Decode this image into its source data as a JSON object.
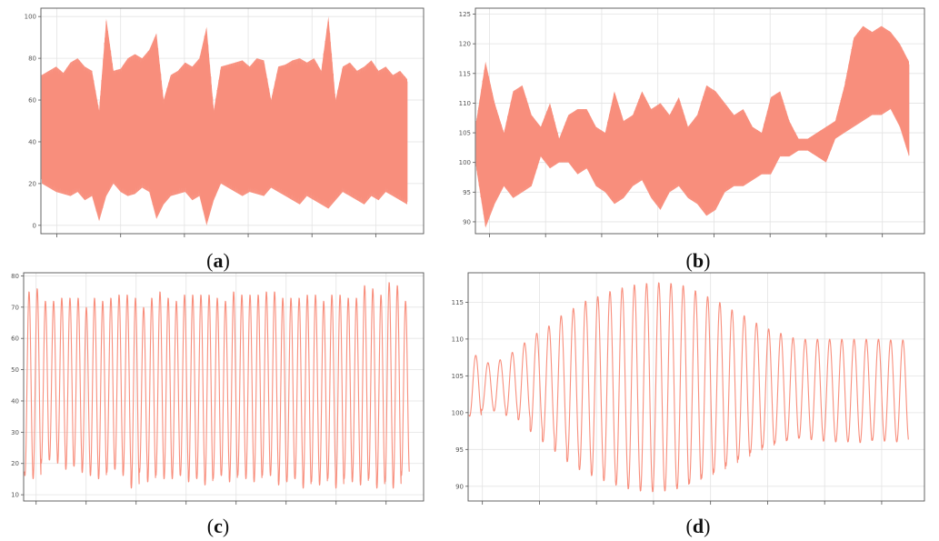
{
  "colors": {
    "series": "#f88e7c",
    "grid": "#e3e3e3",
    "frame": "#555555"
  },
  "panels": [
    {
      "caption": "a",
      "chart_data": {
        "type": "area",
        "render": "dense-band",
        "ylim": [
          -4,
          104
        ],
        "yticks": [
          0,
          20,
          40,
          60,
          80,
          100
        ],
        "xticks_count": 6,
        "grid": true,
        "series": [
          {
            "band_upper": [
              72,
              74,
              76,
              73,
              78,
              80,
              76,
              74,
              55,
              99,
              74,
              75,
              80,
              82,
              80,
              84,
              92,
              60,
              72,
              74,
              78,
              76,
              80,
              95,
              55,
              76,
              77,
              78,
              79,
              76,
              80,
              79,
              60,
              76,
              77,
              79,
              80,
              78,
              80,
              74,
              100,
              60,
              76,
              78,
              74,
              76,
              79,
              74,
              76,
              72,
              74,
              70
            ],
            "band_lower": [
              20,
              18,
              16,
              15,
              14,
              16,
              12,
              14,
              2,
              14,
              20,
              16,
              14,
              15,
              18,
              16,
              3,
              10,
              14,
              15,
              16,
              12,
              14,
              0,
              12,
              20,
              18,
              16,
              14,
              16,
              15,
              14,
              18,
              16,
              14,
              12,
              10,
              14,
              12,
              10,
              8,
              12,
              16,
              14,
              12,
              10,
              14,
              12,
              16,
              14,
              12,
              10
            ]
          }
        ]
      }
    },
    {
      "caption": "b",
      "chart_data": {
        "type": "area",
        "render": "dense-band",
        "ylim": [
          88,
          126
        ],
        "yticks": [
          90,
          95,
          100,
          105,
          110,
          115,
          120,
          125
        ],
        "xticks_count": 8,
        "grid": true,
        "series": [
          {
            "band_upper": [
              107,
              117,
              110,
              105,
              112,
              113,
              108,
              106,
              110,
              104,
              108,
              109,
              109,
              106,
              105,
              112,
              107,
              108,
              112,
              109,
              110,
              108,
              111,
              106,
              108,
              113,
              112,
              110,
              108,
              109,
              106,
              105,
              111,
              112,
              107,
              104,
              104,
              105,
              106,
              107,
              113,
              121,
              123,
              122,
              123,
              122,
              120,
              117
            ],
            "band_lower": [
              99,
              89,
              93,
              96,
              94,
              95,
              96,
              101,
              99,
              100,
              100,
              98,
              99,
              96,
              95,
              93,
              94,
              96,
              97,
              94,
              92,
              95,
              96,
              94,
              93,
              91,
              92,
              95,
              96,
              96,
              97,
              98,
              98,
              101,
              101,
              102,
              102,
              101,
              100,
              104,
              105,
              106,
              107,
              108,
              108,
              109,
              106,
              101
            ]
          }
        ]
      }
    },
    {
      "caption": "c",
      "chart_data": {
        "type": "line",
        "render": "oscillation",
        "ylim": [
          8,
          81
        ],
        "yticks": [
          10,
          20,
          30,
          40,
          50,
          60,
          70,
          80
        ],
        "xticks_count": 8,
        "grid": true,
        "series": [
          {
            "peaks": [
              75,
              76,
              72,
              72,
              73,
              73,
              73,
              70,
              73,
              72,
              73,
              74,
              74,
              73,
              70,
              73,
              75,
              73,
              72,
              74,
              74,
              74,
              74,
              73,
              72,
              75,
              74,
              74,
              74,
              75,
              75,
              73,
              73,
              73,
              74,
              74,
              72,
              74,
              74,
              73,
              73,
              77,
              76,
              74,
              78,
              77,
              72
            ],
            "troughs": [
              16,
              15,
              20,
              21,
              20,
              18,
              19,
              17,
              16,
              15,
              17,
              18,
              16,
              12,
              17,
              14,
              16,
              15,
              15,
              16,
              14,
              15,
              13,
              15,
              16,
              14,
              16,
              15,
              14,
              16,
              16,
              13,
              14,
              15,
              12,
              14,
              13,
              15,
              12,
              15,
              14,
              13,
              15,
              12,
              14,
              12,
              16
            ]
          }
        ]
      }
    },
    {
      "caption": "d",
      "chart_data": {
        "type": "line",
        "render": "oscillation",
        "ylim": [
          88,
          119
        ],
        "yticks": [
          90,
          95,
          100,
          105,
          110,
          115
        ],
        "xticks_count": 8,
        "grid": true,
        "series": [
          {
            "peaks": [
              107.8,
              106.8,
              107.2,
              108.2,
              109.5,
              110.8,
              111.8,
              113.2,
              114.2,
              115.2,
              115.8,
              116.5,
              117,
              117.4,
              117.6,
              117.7,
              117.6,
              117.3,
              116.6,
              115.8,
              115,
              114,
              113.2,
              112.2,
              111.4,
              110.8,
              110.2,
              110,
              110,
              110,
              110,
              110,
              110,
              110,
              109.9,
              109.9
            ],
            "troughs": [
              99.5,
              100.3,
              100.2,
              99.6,
              99,
              97.4,
              96,
              94.7,
              93.3,
              92.2,
              91.4,
              90.7,
              90.1,
              89.6,
              89.3,
              89.2,
              89.3,
              89.6,
              90.3,
              91,
              91.8,
              92.7,
              93.6,
              94.5,
              95.2,
              95.8,
              96.2,
              96.5,
              96.3,
              96.1,
              96,
              96,
              95.9,
              96.2,
              96.1,
              96
            ]
          }
        ]
      }
    }
  ]
}
